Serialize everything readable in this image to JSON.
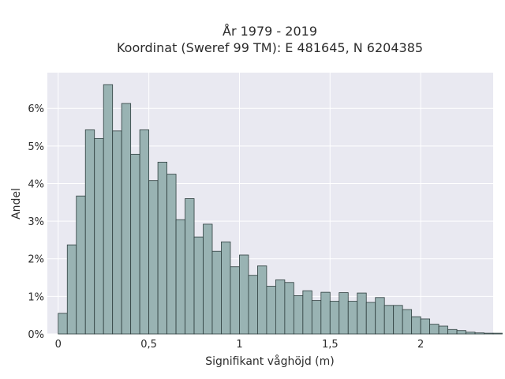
{
  "chart_data": {
    "type": "bar",
    "title_lines": [
      "År 1979 - 2019",
      "Koordinat (Sweref 99 TM): E 481645, N 6204385"
    ],
    "xlabel": "Signifikant våghöjd (m)",
    "ylabel": "Andel",
    "bin_width": 0.05,
    "bin_start": 0.0,
    "xlim": [
      -0.06,
      2.4
    ],
    "ylim": [
      0,
      6.95
    ],
    "x_ticks": [
      {
        "value": 0,
        "label": "0"
      },
      {
        "value": 0.5,
        "label": "0,5"
      },
      {
        "value": 1,
        "label": "1"
      },
      {
        "value": 1.5,
        "label": "1,5"
      },
      {
        "value": 2,
        "label": "2"
      }
    ],
    "y_ticks": [
      {
        "value": 0,
        "label": "0%"
      },
      {
        "value": 1,
        "label": "1%"
      },
      {
        "value": 2,
        "label": "2%"
      },
      {
        "value": 3,
        "label": "3%"
      },
      {
        "value": 4,
        "label": "4%"
      },
      {
        "value": 5,
        "label": "5%"
      },
      {
        "value": 6,
        "label": "6%"
      }
    ],
    "values": [
      0.55,
      2.37,
      3.67,
      5.43,
      5.2,
      6.63,
      5.4,
      6.13,
      4.78,
      5.43,
      4.08,
      4.57,
      4.25,
      3.04,
      3.6,
      2.58,
      2.92,
      2.2,
      2.45,
      1.79,
      2.1,
      1.56,
      1.81,
      1.27,
      1.44,
      1.37,
      1.02,
      1.15,
      0.89,
      1.11,
      0.87,
      1.1,
      0.87,
      1.09,
      0.84,
      0.97,
      0.76,
      0.76,
      0.65,
      0.46,
      0.4,
      0.26,
      0.21,
      0.12,
      0.09,
      0.05,
      0.03,
      0.02,
      0.02
    ],
    "grid": true,
    "colors": {
      "plot_bg": "#e9e9f1",
      "bar_fill": "#99b3b3",
      "bar_edge": "#2e3e3e"
    }
  }
}
